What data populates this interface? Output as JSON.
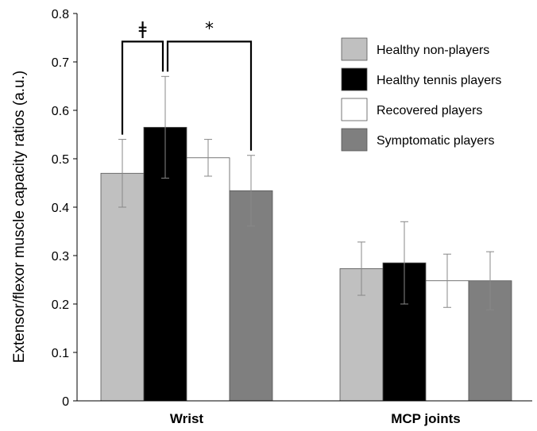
{
  "chart_data": {
    "type": "bar",
    "categories": [
      "Wrist",
      "MCP joints"
    ],
    "series": [
      {
        "name": "Healthy non-players",
        "color": "#c0c0c0",
        "values": [
          0.47,
          0.273
        ],
        "errors": [
          0.07,
          0.055
        ]
      },
      {
        "name": "Healthy tennis players",
        "color": "#000000",
        "values": [
          0.565,
          0.285
        ],
        "errors": [
          0.105,
          0.085
        ]
      },
      {
        "name": "Recovered players",
        "color": "#ffffff",
        "values": [
          0.502,
          0.248
        ],
        "errors": [
          0.038,
          0.055
        ]
      },
      {
        "name": "Symptomatic players",
        "color": "#7f7f7f",
        "values": [
          0.434,
          0.248
        ],
        "errors": [
          0.073,
          0.06
        ]
      }
    ],
    "title": "",
    "xlabel": "",
    "ylabel": "Extensor/flexor muscle capacity ratios (a.u.)",
    "ylim": [
      0,
      0.8
    ],
    "yticks": [
      0,
      0.1,
      0.2,
      0.3,
      0.4,
      0.5,
      0.6,
      0.7,
      0.8
    ],
    "ytick_labels": [
      "0",
      "0.1",
      "0.2",
      "0.3",
      "0.4",
      "0.5",
      "0.6",
      "0.7",
      "0.8"
    ],
    "grid": false,
    "legend_position": "top-right",
    "annotations": [
      {
        "text": "ǂ",
        "category": "Wrist",
        "from_series": 0,
        "to_series": 1,
        "top": 0.742
      },
      {
        "text": "*",
        "category": "Wrist",
        "from_series": 1,
        "to_series": 3,
        "top": 0.742
      }
    ]
  }
}
